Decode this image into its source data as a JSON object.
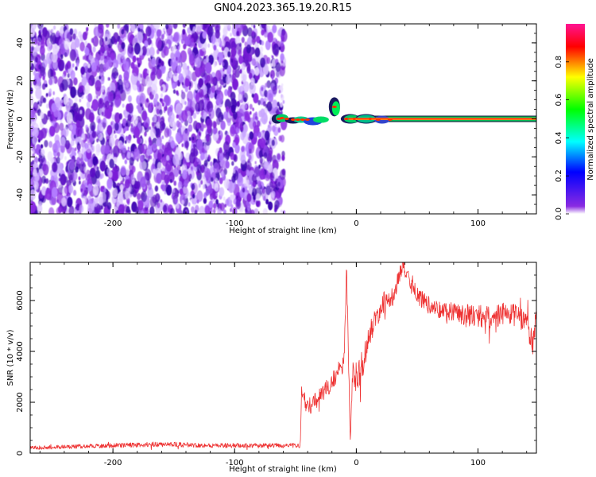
{
  "title": "GN04.2023.365.19.20.R15",
  "colors": {
    "signal_trace": "#ee3333",
    "noise_speckle": "#8a2be2",
    "ridge_center": "#ee2222",
    "ridge_edge": "#00cc44"
  },
  "chart_data": [
    {
      "type": "heatmap",
      "xlabel": "Height of straight line (km)",
      "ylabel": "Frequency (Hz)",
      "xlim": [
        -268,
        148
      ],
      "ylim": [
        -50,
        50
      ],
      "x_ticks": [
        -200,
        -100,
        0,
        100
      ],
      "x_tick_labels": [
        "-200",
        "-100",
        "0",
        "100"
      ],
      "y_ticks": [
        -40,
        -20,
        0,
        20,
        40
      ],
      "y_tick_labels": [
        "-40",
        "-20",
        "0",
        "20",
        "40"
      ],
      "grid": false,
      "noise_region_x": [
        -268,
        -62
      ],
      "ridge_frequency_hz": 0,
      "ridge_start_x": -65,
      "ridge_bump": {
        "x": -18,
        "peak_hz": 8
      },
      "colorbar": {
        "label": "Normalized spectral amplitude",
        "range": [
          0,
          1
        ],
        "ticks": [
          0.0,
          0.2,
          0.4,
          0.6,
          0.8
        ],
        "tick_labels": [
          "0.0",
          "0.2",
          "0.4",
          "0.6",
          "0.8"
        ],
        "colormap": [
          "#ffffff",
          "#8a2be2",
          "#0000ff",
          "#00ffff",
          "#00ff00",
          "#ffff00",
          "#ff0000",
          "#ff1493"
        ]
      }
    },
    {
      "type": "line",
      "xlabel": "Height of straight line (km)",
      "ylabel": "SNR (10 * v/v)",
      "xlim": [
        -268,
        148
      ],
      "ylim": [
        0,
        7500
      ],
      "x_ticks": [
        -200,
        -100,
        0,
        100
      ],
      "x_tick_labels": [
        "-200",
        "-100",
        "0",
        "100"
      ],
      "y_ticks": [
        0,
        2000,
        4000,
        6000
      ],
      "y_tick_labels": [
        "0",
        "2000",
        "4000",
        "6000"
      ],
      "grid": false,
      "series": [
        {
          "x": [
            -268,
            -240,
            -200,
            -160,
            -120,
            -80,
            -60,
            -46,
            -45,
            -40,
            -30,
            -20,
            -15,
            -10,
            -8,
            -5,
            -3,
            0,
            5,
            10,
            20,
            30,
            38,
            45,
            50,
            60,
            70,
            80,
            90,
            100,
            110,
            120,
            130,
            140,
            145,
            148
          ],
          "y": [
            200,
            250,
            300,
            350,
            300,
            300,
            300,
            300,
            2400,
            1800,
            2200,
            2800,
            3200,
            3600,
            7200,
            500,
            3000,
            3000,
            3500,
            4500,
            5800,
            6200,
            7400,
            6600,
            6200,
            5800,
            5600,
            5600,
            5400,
            5400,
            5300,
            5500,
            5400,
            5200,
            4200,
            5500
          ],
          "noise_amplitude": [
            80,
            80,
            90,
            100,
            90,
            90,
            90,
            90,
            250,
            350,
            350,
            350,
            400,
            400,
            500,
            400,
            600,
            600,
            600,
            500,
            450,
            400,
            350,
            350,
            350,
            350,
            350,
            400,
            450,
            450,
            450,
            450,
            450,
            450,
            450,
            450
          ]
        }
      ]
    }
  ]
}
